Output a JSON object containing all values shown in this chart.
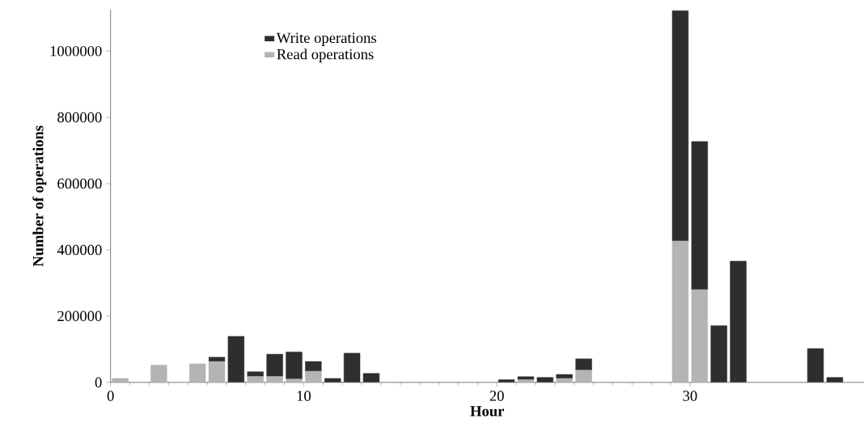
{
  "chart_data": {
    "type": "bar",
    "stacked": true,
    "xlabel": "Hour",
    "ylabel": "Number of operations",
    "x": [
      0.5,
      2.5,
      4.5,
      5.5,
      6.5,
      7.5,
      8.5,
      9.5,
      10.5,
      11.5,
      12.5,
      13.5,
      20.5,
      21.5,
      22.5,
      23.5,
      24.5,
      29.5,
      30.5,
      31.5,
      32.5,
      36.5,
      37.5
    ],
    "series": [
      {
        "name": "Read operations",
        "color": "#b4b4b4",
        "values": [
          12000,
          52000,
          56000,
          63000,
          0,
          18000,
          18000,
          10000,
          34000,
          null,
          0,
          0,
          null,
          8000,
          null,
          12000,
          37000,
          427000,
          280000,
          0,
          0,
          0,
          0
        ]
      },
      {
        "name": "Write operations",
        "color": "#2e2e2e",
        "values": [
          0,
          0,
          0,
          13000,
          139000,
          14000,
          67000,
          82000,
          29000,
          12000,
          88000,
          27000,
          8000,
          9000,
          15000,
          12000,
          34000,
          695000,
          447000,
          171000,
          366000,
          102000,
          15000
        ]
      }
    ],
    "xlim": [
      0,
      39
    ],
    "ylim": [
      0,
      1125000
    ],
    "xticks": [
      0,
      10,
      20,
      30
    ],
    "yticks": [
      0,
      200000,
      400000,
      600000,
      800000,
      1000000
    ],
    "grid": false,
    "legend": "top left"
  }
}
